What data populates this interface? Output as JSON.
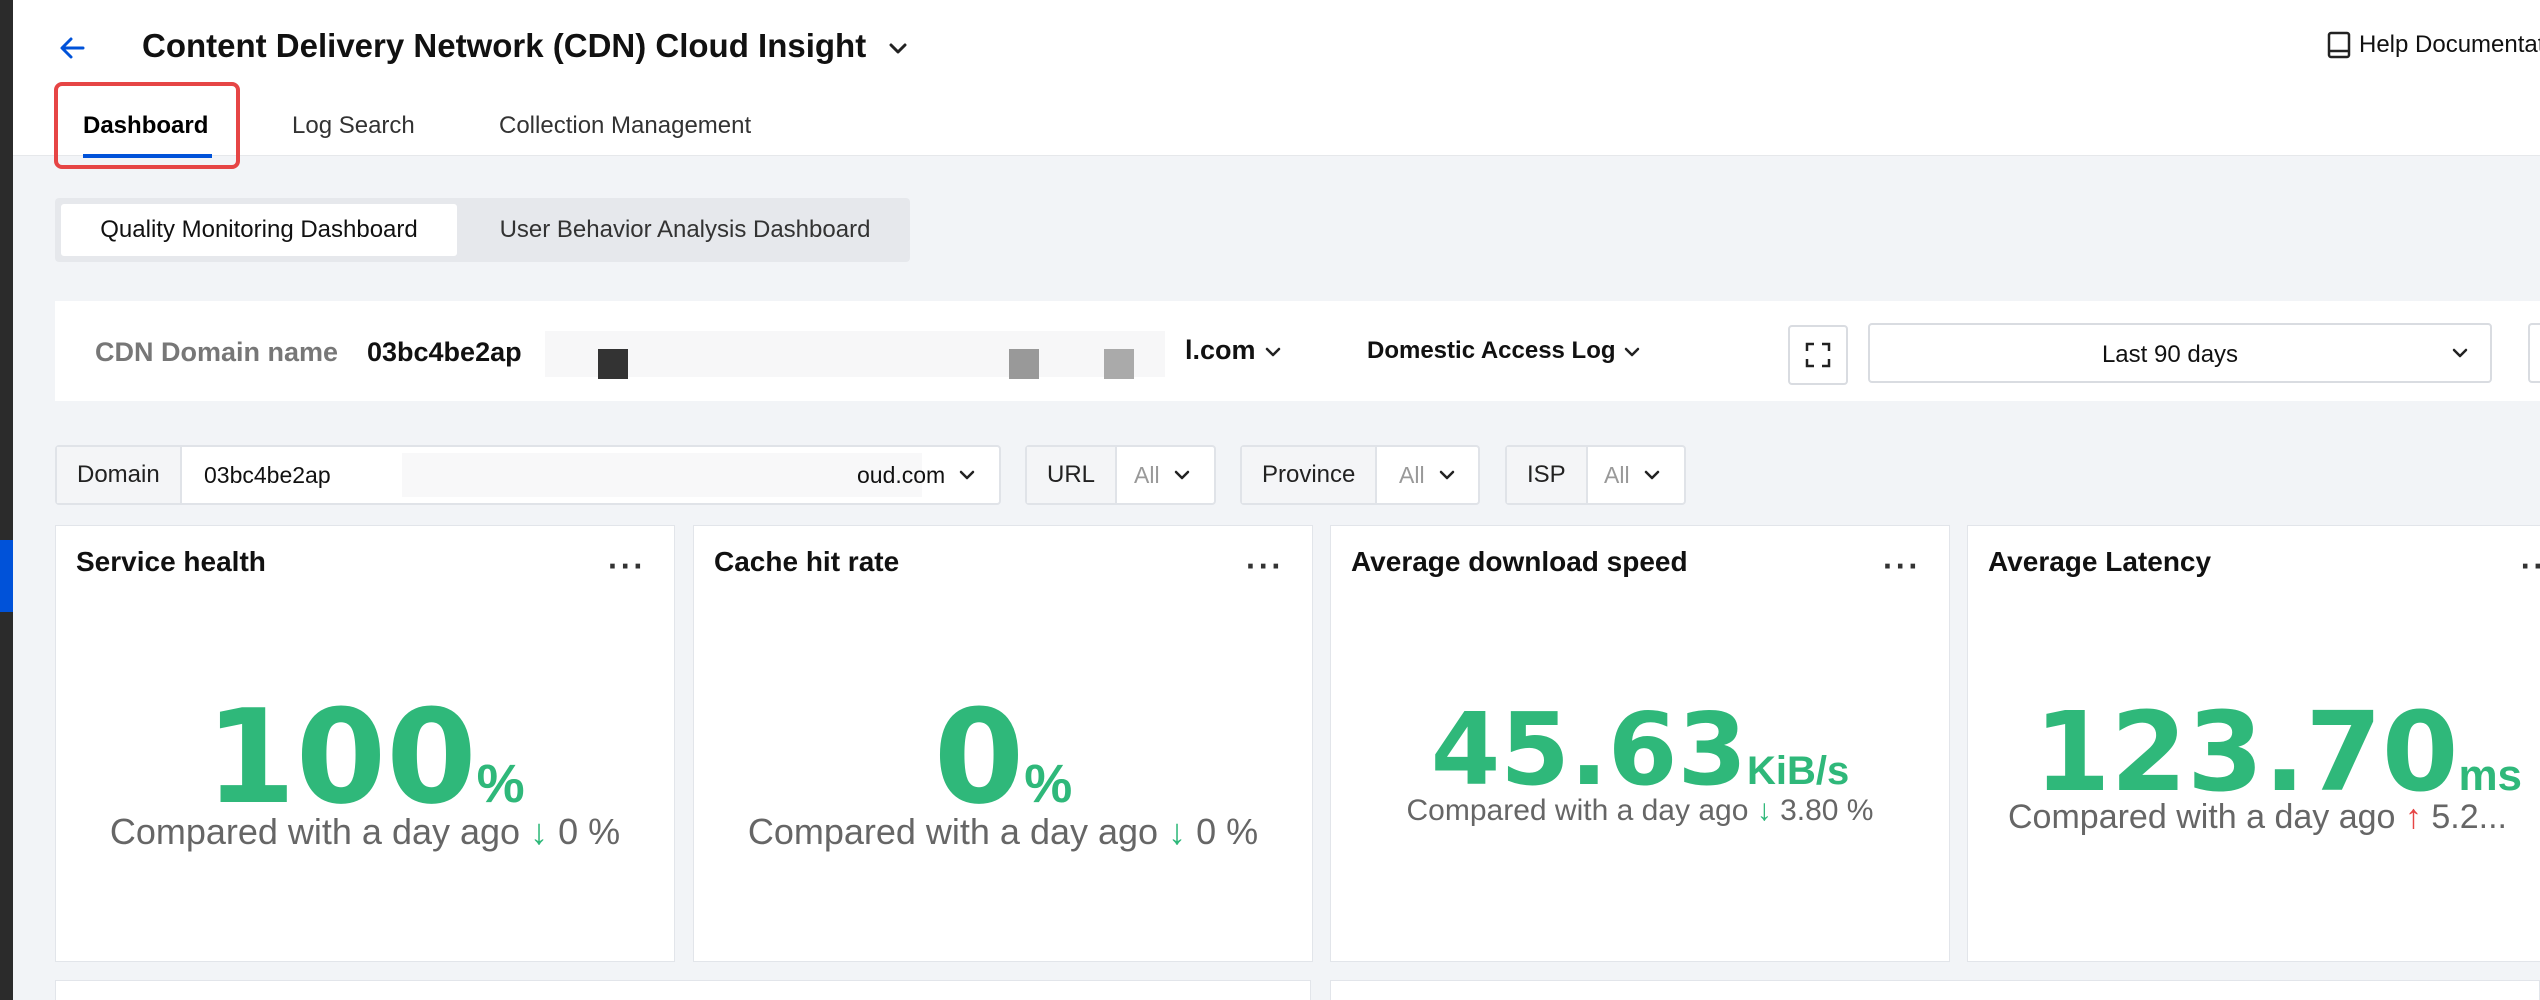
{
  "header": {
    "title": "Content Delivery Network (CDN) Cloud Insight",
    "help_label": "Help Documentat"
  },
  "tabs": [
    {
      "label": "Dashboard",
      "active": true
    },
    {
      "label": "Log Search",
      "active": false
    },
    {
      "label": "Collection Management",
      "active": false
    }
  ],
  "subtabs": [
    {
      "label": "Quality Monitoring Dashboard",
      "active": true
    },
    {
      "label": "User Behavior Analysis Dashboard",
      "active": false
    }
  ],
  "filterbar": {
    "domain_label": "CDN Domain name",
    "domain_value_start": "03bc4be2ap",
    "domain_value_end": "l.com",
    "log_type": "Domestic Access Log",
    "time_range": "Last 90 days"
  },
  "filters": {
    "domain": {
      "label": "Domain",
      "value_start": "03bc4be2ap",
      "value_end": "oud.com"
    },
    "url": {
      "label": "URL",
      "value": "All"
    },
    "province": {
      "label": "Province",
      "value": "All"
    },
    "isp": {
      "label": "ISP",
      "value": "All"
    }
  },
  "cards": [
    {
      "title": "Service health",
      "value": "100",
      "unit": "%",
      "compare_text": "Compared with a day ago",
      "trend": "down",
      "change": "0 %"
    },
    {
      "title": "Cache hit rate",
      "value": "0",
      "unit": "%",
      "compare_text": "Compared with a day ago",
      "trend": "down",
      "change": "0 %"
    },
    {
      "title": "Average download speed",
      "value": "45.63",
      "unit": "KiB/s",
      "compare_text": "Compared with a day ago",
      "trend": "down",
      "change": "3.80 %"
    },
    {
      "title": "Average Latency",
      "value": "123.70",
      "unit": "ms",
      "compare_text": "Compared with a day ago",
      "trend": "up",
      "change": "5.2..."
    }
  ],
  "colors": {
    "accent": "#0052d9",
    "positive": "#2fb87a",
    "negative": "#e64545",
    "highlight_box": "#e64545"
  },
  "icons": {
    "back": "arrow-left-icon",
    "title_dropdown": "chevron-down-icon",
    "help": "book-icon",
    "fullscreen": "fullscreen-icon",
    "more": "more-horizontal-icon"
  }
}
